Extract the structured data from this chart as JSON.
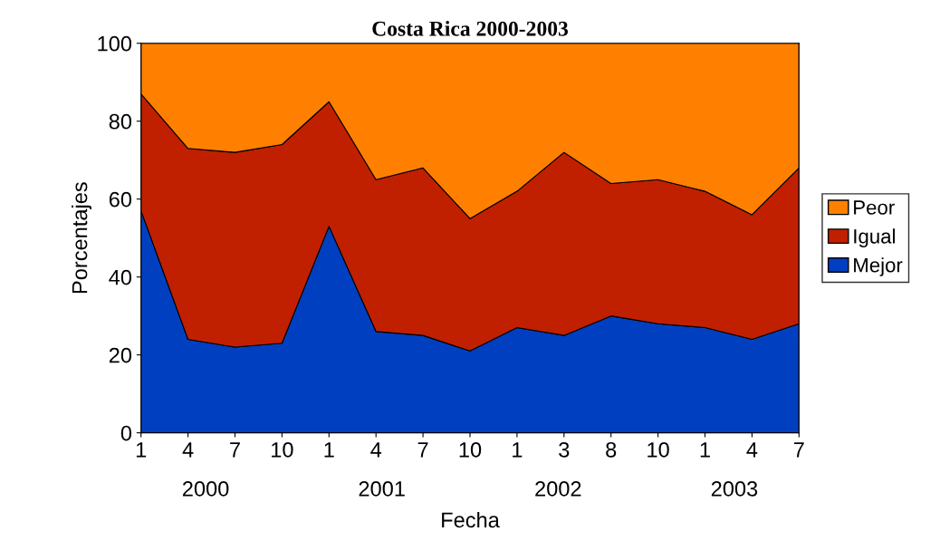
{
  "chart_data": {
    "type": "area",
    "stacked": true,
    "title": "Costa Rica 2000-2003",
    "xlabel": "Fecha",
    "ylabel": "Porcentajes",
    "categories": [
      "1",
      "4",
      "7",
      "10",
      "1",
      "4",
      "7",
      "10",
      "1",
      "3",
      "8",
      "10",
      "1",
      "4",
      "7"
    ],
    "annotations": [
      "2000",
      "2001",
      "2002",
      "2003"
    ],
    "series": [
      {
        "name": "Mejor",
        "color": "#0040c0",
        "values": [
          57,
          24,
          22,
          23,
          53,
          26,
          25,
          21,
          27,
          25,
          30,
          28,
          27,
          24,
          28
        ]
      },
      {
        "name": "Igual",
        "color": "#c02000",
        "values": [
          30,
          49,
          50,
          51,
          32,
          39,
          43,
          34,
          35,
          47,
          34,
          37,
          35,
          32,
          40
        ]
      },
      {
        "name": "Peor",
        "color": "#ff8000",
        "values": [
          13,
          27,
          28,
          26,
          15,
          35,
          32,
          45,
          38,
          28,
          36,
          35,
          38,
          44,
          32
        ]
      }
    ],
    "ylim": [
      0,
      100
    ],
    "yticks": [
      0,
      20,
      40,
      60,
      80,
      100
    ],
    "legend": "right"
  }
}
